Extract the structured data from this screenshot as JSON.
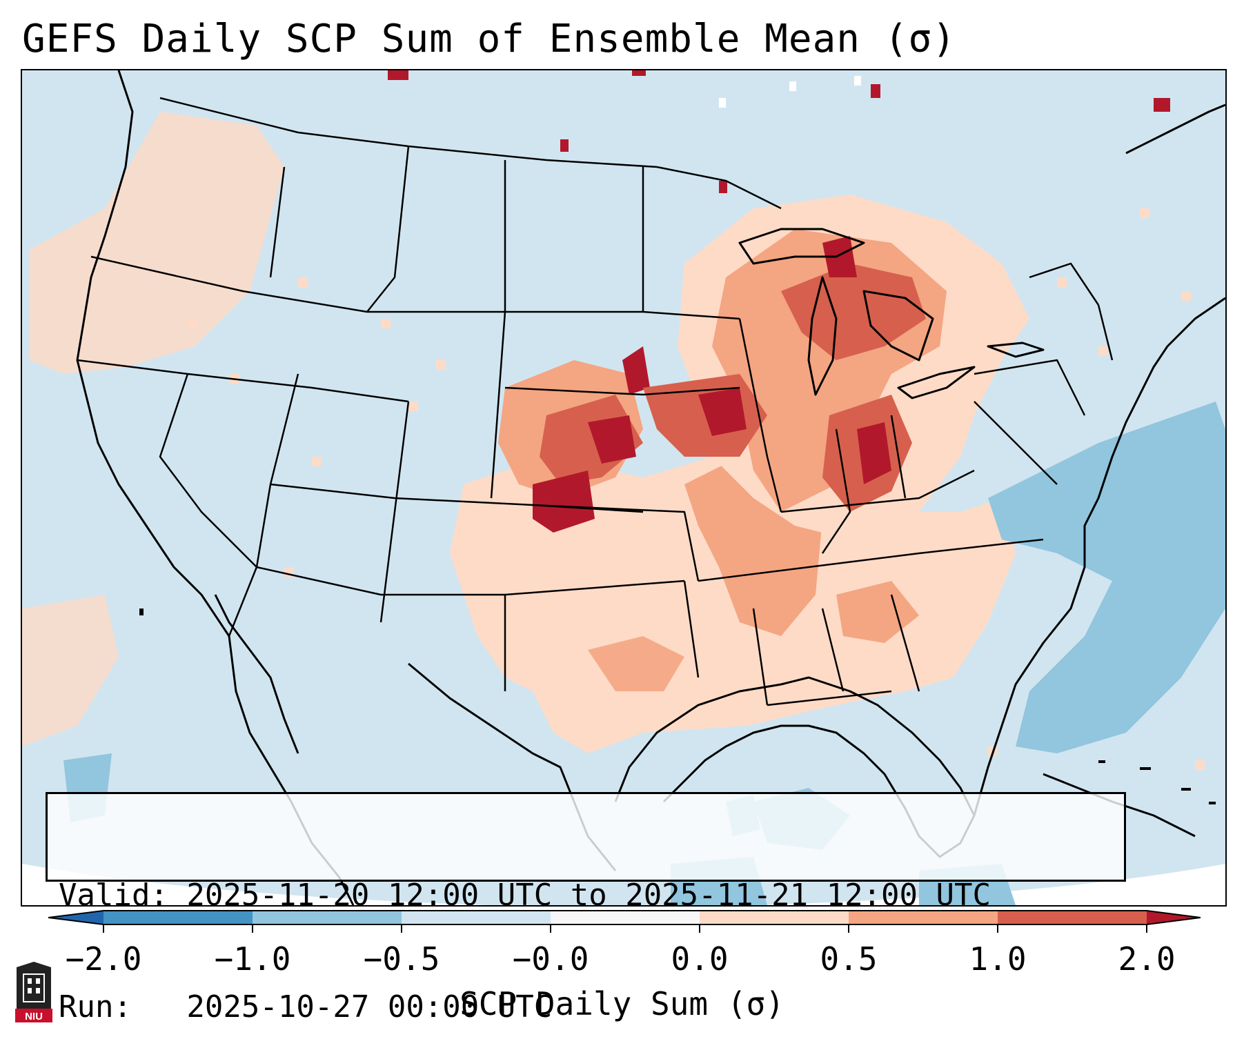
{
  "title": "GEFS Daily SCP Sum of Ensemble Mean (σ)",
  "info": {
    "valid_line": "Valid: 2025-11-20 12:00 UTC to 2025-11-21 12:00 UTC",
    "run_line": "Run:   2025-10-27 00:00 UTC"
  },
  "colorbar": {
    "label": "SCP Daily Sum (σ)",
    "ticks": [
      "−2.0",
      "−1.0",
      "−0.5",
      "−0.0",
      "0.0",
      "0.5",
      "1.0",
      "2.0"
    ],
    "colors": {
      "below_min": "#2166ac",
      "neg_2_to_neg_1": "#4393c3",
      "neg_1_to_neg_05": "#92c5de",
      "neg_05_to_0": "#d1e5f0",
      "zero": "#f7f7f7",
      "pos_0_to_05": "#fddbc7",
      "pos_05_to_1": "#f4a582",
      "pos_1_to_2": "#d6604d",
      "above_max": "#b2182b"
    }
  },
  "map": {
    "background_color": "#d1e5f0",
    "regions": [
      {
        "level": "elevated",
        "area": "Pacific Northwest coast"
      },
      {
        "level": "elevated",
        "area": "Southern Plains / Texas"
      },
      {
        "level": "elevated",
        "area": "Lower Mississippi Valley and Southeast"
      },
      {
        "level": "moderate",
        "area": "Ohio Valley"
      },
      {
        "level": "high",
        "area": "Central Plains (Nebraska / Kansas)"
      },
      {
        "level": "high",
        "area": "Iowa / Illinois / Indiana"
      },
      {
        "level": "high",
        "area": "Great Lakes / Michigan"
      },
      {
        "level": "low",
        "area": "Western Atlantic"
      },
      {
        "level": "low",
        "area": "Gulf of Mexico"
      }
    ]
  },
  "logo": {
    "text": "NIU"
  }
}
